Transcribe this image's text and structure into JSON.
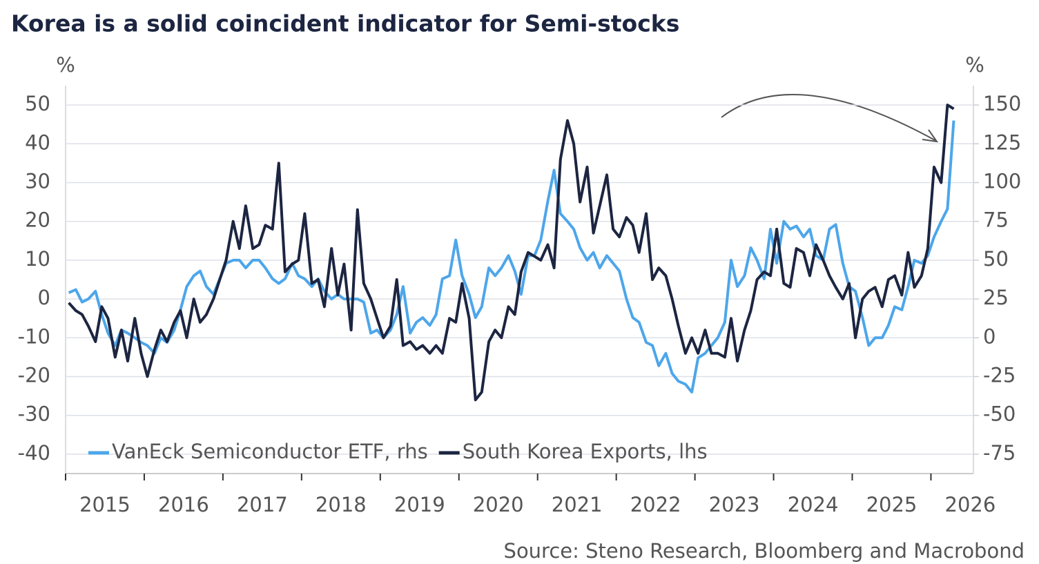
{
  "chart_data": {
    "type": "line",
    "title": "Korea is a solid coincident indicator for Semi-stocks",
    "y_unit": "%",
    "y2_unit": "%",
    "source": "Source: Steno Research, Bloomberg and Macrobond",
    "x": [
      2015.04,
      2015.13,
      2015.21,
      2015.29,
      2015.38,
      2015.46,
      2015.54,
      2015.63,
      2015.71,
      2015.79,
      2015.88,
      2015.96,
      2016.04,
      2016.13,
      2016.21,
      2016.29,
      2016.38,
      2016.46,
      2016.54,
      2016.63,
      2016.71,
      2016.79,
      2016.88,
      2016.96,
      2017.04,
      2017.13,
      2017.21,
      2017.29,
      2017.38,
      2017.46,
      2017.54,
      2017.63,
      2017.71,
      2017.79,
      2017.88,
      2017.96,
      2018.04,
      2018.13,
      2018.21,
      2018.29,
      2018.38,
      2018.46,
      2018.54,
      2018.63,
      2018.71,
      2018.79,
      2018.88,
      2018.96,
      2019.04,
      2019.13,
      2019.21,
      2019.29,
      2019.38,
      2019.46,
      2019.54,
      2019.63,
      2019.71,
      2019.79,
      2019.88,
      2019.96,
      2020.04,
      2020.13,
      2020.21,
      2020.29,
      2020.38,
      2020.46,
      2020.54,
      2020.63,
      2020.71,
      2020.79,
      2020.88,
      2020.96,
      2021.04,
      2021.13,
      2021.21,
      2021.29,
      2021.38,
      2021.46,
      2021.54,
      2021.63,
      2021.71,
      2021.79,
      2021.88,
      2021.96,
      2022.04,
      2022.13,
      2022.21,
      2022.29,
      2022.38,
      2022.46,
      2022.54,
      2022.63,
      2022.71,
      2022.79,
      2022.88,
      2022.96,
      2023.04,
      2023.13,
      2023.21,
      2023.29,
      2023.38,
      2023.46,
      2023.54,
      2023.63,
      2023.71,
      2023.79,
      2023.88,
      2023.96,
      2024.04,
      2024.13,
      2024.21,
      2024.29,
      2024.38,
      2024.46,
      2024.54,
      2024.63,
      2024.71,
      2024.79,
      2024.88,
      2024.96,
      2025.04,
      2025.13,
      2025.21,
      2025.29,
      2025.38,
      2025.46,
      2025.54,
      2025.63,
      2025.71,
      2025.79,
      2025.88,
      2025.96,
      2026.04,
      2026.13,
      2026.21,
      2026.29
    ],
    "series": [
      {
        "name": "VanEck Semiconductor ETF, rhs",
        "color": "#4da6ea",
        "axis": "y2",
        "values": [
          29,
          31,
          23,
          25,
          30,
          15,
          3,
          -5,
          5,
          3,
          0,
          -3,
          -5,
          -10,
          0,
          -3,
          5,
          18,
          33,
          40,
          43,
          33,
          28,
          38,
          48,
          50,
          50,
          45,
          50,
          50,
          45,
          38,
          35,
          38,
          48,
          40,
          38,
          33,
          38,
          30,
          25,
          28,
          25,
          25,
          25,
          23,
          3,
          5,
          0,
          5,
          15,
          33,
          3,
          10,
          13,
          8,
          15,
          38,
          40,
          63,
          40,
          28,
          13,
          20,
          45,
          40,
          45,
          53,
          43,
          28,
          53,
          53,
          63,
          88,
          108,
          80,
          75,
          70,
          58,
          50,
          55,
          45,
          53,
          48,
          43,
          25,
          13,
          10,
          -3,
          -5,
          -18,
          -10,
          -23,
          -28,
          -30,
          -35,
          -13,
          -10,
          -5,
          0,
          10,
          50,
          33,
          40,
          58,
          50,
          38,
          70,
          48,
          75,
          70,
          72,
          65,
          70,
          53,
          50,
          70,
          73,
          48,
          33,
          30,
          13,
          -5,
          0,
          0,
          8,
          20,
          18,
          33,
          50,
          48,
          53,
          65,
          75,
          83,
          140
        ]
      },
      {
        "name": "South Korea Exports, lhs",
        "color": "#1c2541",
        "values": [
          -1,
          -3,
          -4,
          -7,
          -11,
          -2,
          -5,
          -15,
          -8,
          -16,
          -5,
          -14,
          -20,
          -13,
          -8,
          -11,
          -6,
          -3,
          -10,
          0,
          -6,
          -4,
          0,
          5,
          10,
          20,
          13,
          24,
          13,
          14,
          19,
          18,
          35,
          7,
          9,
          10,
          22,
          4,
          5,
          -2,
          13,
          1,
          9,
          -8,
          23,
          4,
          0,
          -5,
          -10,
          -7,
          5,
          -12,
          -11,
          -13,
          -12,
          -14,
          -12,
          -14,
          -5,
          -6,
          4,
          -5,
          -26,
          -24,
          -11,
          -8,
          -10,
          -2,
          -4,
          7,
          12,
          11,
          10,
          14,
          8,
          36,
          46,
          40,
          25,
          34,
          17,
          24,
          32,
          18,
          16,
          21,
          19,
          12,
          22,
          5,
          8,
          6,
          0,
          -7,
          -14,
          -10,
          -14,
          -8,
          -14,
          -14,
          -15,
          -5,
          -16,
          -8,
          -3,
          5,
          7,
          6,
          18,
          4,
          3,
          13,
          12,
          6,
          14,
          10,
          6,
          3,
          0,
          4,
          -10,
          0,
          2,
          3,
          -2,
          5,
          6,
          1,
          12,
          3,
          6,
          13,
          34,
          30,
          50,
          49
        ]
      }
    ],
    "xlim": [
      2015,
      2026.54
    ],
    "xticks": [
      2015,
      2016,
      2017,
      2018,
      2019,
      2020,
      2021,
      2022,
      2023,
      2024,
      2025,
      2026
    ],
    "ylim": [
      -45,
      55
    ],
    "yticks": [
      50,
      40,
      30,
      20,
      10,
      0,
      -10,
      -20,
      -30,
      -40
    ],
    "y2lim": [
      -87.5,
      162.5
    ],
    "y2ticks": [
      150,
      125,
      100,
      75,
      50,
      25,
      0,
      -25,
      -50,
      -75
    ],
    "grid": true,
    "legend": "bottom-left"
  }
}
